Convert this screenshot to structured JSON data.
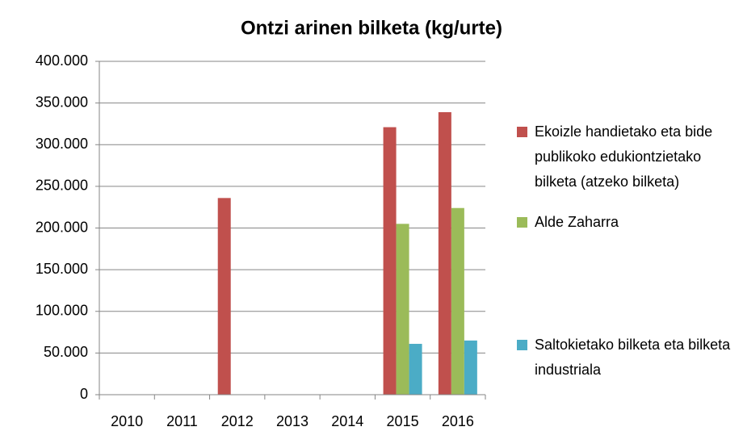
{
  "chart_data": {
    "type": "bar",
    "title": "Ontzi arinen bilketa (kg/urte)",
    "categories": [
      "2010",
      "2011",
      "2012",
      "2013",
      "2014",
      "2015",
      "2016"
    ],
    "series": [
      {
        "name": "Ekoizle handietako eta bide publikoko edukiontzietako bilketa (atzeko bilketa)",
        "color": "#c0504d",
        "values": [
          null,
          null,
          236000,
          null,
          null,
          321000,
          339000
        ]
      },
      {
        "name": "Alde Zaharra",
        "color": "#9bbb59",
        "values": [
          null,
          null,
          null,
          null,
          null,
          205000,
          224000
        ]
      },
      {
        "name": "Saltokietako bilketa eta bilketa industriala",
        "color": "#4bacc6",
        "values": [
          null,
          null,
          null,
          null,
          null,
          61000,
          65000
        ]
      }
    ],
    "ylim": [
      0,
      400000
    ],
    "yticks": [
      0,
      {
        "value": 50000,
        "label": "50.000"
      },
      {
        "value": 100000,
        "label": "100.000"
      },
      {
        "value": 150000,
        "label": "150.000"
      },
      {
        "value": 200000,
        "label": "200.000"
      },
      {
        "value": 250000,
        "label": "250.000"
      },
      {
        "value": 300000,
        "label": "300.000"
      },
      {
        "value": 350000,
        "label": "350.000"
      },
      {
        "value": 400000,
        "label": "400.000"
      }
    ],
    "grid": true,
    "legend": "right"
  }
}
